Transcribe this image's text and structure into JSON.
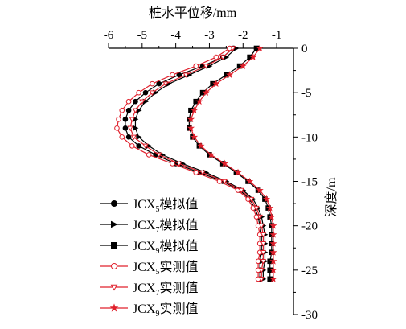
{
  "chart_data": {
    "type": "line",
    "title": "",
    "xlabel": "桩水平位移/mm",
    "ylabel": "深度/m",
    "xlim": [
      -6,
      -0.5
    ],
    "ylim": [
      0,
      -30
    ],
    "x_ticks": [
      -6,
      -5,
      -4,
      -3,
      -2,
      -1
    ],
    "y_ticks": [
      0,
      -5,
      -10,
      -15,
      -20,
      -25,
      -30
    ],
    "x_axis_position": "top",
    "y_axis_position": "right",
    "grid": false,
    "legend_position": "bottom-left",
    "series": [
      {
        "name": "JCX5模拟值",
        "name_base": "JCX",
        "name_sub": "5",
        "name_suffix": "模拟值",
        "color": "#000000",
        "marker": "circle",
        "filled": true,
        "depth": [
          0,
          -1,
          -2,
          -3,
          -4,
          -5,
          -6,
          -7,
          -8,
          -9,
          -10,
          -11,
          -12,
          -13,
          -14,
          -15,
          -16,
          -17,
          -18,
          -19,
          -20,
          -21,
          -22,
          -23,
          -24,
          -25,
          -26
        ],
        "x": [
          -2.3,
          -2.6,
          -3.2,
          -3.9,
          -4.5,
          -4.9,
          -5.2,
          -5.4,
          -5.5,
          -5.5,
          -5.4,
          -5.1,
          -4.6,
          -4.0,
          -3.3,
          -2.6,
          -2.1,
          -1.8,
          -1.65,
          -1.55,
          -1.5,
          -1.45,
          -1.45,
          -1.45,
          -1.5,
          -1.5,
          -1.5
        ]
      },
      {
        "name": "JCX7模拟值",
        "name_base": "JCX",
        "name_sub": "7",
        "name_suffix": "模拟值",
        "color": "#000000",
        "marker": "triangle-right",
        "filled": true,
        "depth": [
          0,
          -1,
          -2,
          -3,
          -4,
          -5,
          -6,
          -7,
          -8,
          -9,
          -10,
          -11,
          -12,
          -13,
          -14,
          -15,
          -16,
          -17,
          -18,
          -19,
          -20,
          -21,
          -22,
          -23,
          -24,
          -25,
          -26
        ],
        "x": [
          -2.2,
          -2.5,
          -3.0,
          -3.6,
          -4.2,
          -4.6,
          -4.9,
          -5.1,
          -5.2,
          -5.2,
          -5.1,
          -4.8,
          -4.4,
          -3.8,
          -3.1,
          -2.5,
          -2.0,
          -1.7,
          -1.55,
          -1.45,
          -1.4,
          -1.35,
          -1.35,
          -1.35,
          -1.35,
          -1.4,
          -1.4
        ]
      },
      {
        "name": "JCX9模拟值",
        "name_base": "JCX",
        "name_sub": "9",
        "name_suffix": "模拟值",
        "color": "#000000",
        "marker": "square",
        "filled": true,
        "depth": [
          0,
          -1,
          -2,
          -3,
          -4,
          -5,
          -6,
          -7,
          -8,
          -9,
          -10,
          -11,
          -12,
          -13,
          -14,
          -15,
          -16,
          -17,
          -18,
          -19,
          -20,
          -21,
          -22,
          -23,
          -24,
          -25,
          -26
        ],
        "x": [
          -1.6,
          -1.8,
          -2.1,
          -2.5,
          -2.9,
          -3.2,
          -3.4,
          -3.55,
          -3.6,
          -3.6,
          -3.5,
          -3.3,
          -3.0,
          -2.6,
          -2.2,
          -1.85,
          -1.55,
          -1.35,
          -1.25,
          -1.2,
          -1.15,
          -1.15,
          -1.15,
          -1.15,
          -1.2,
          -1.2,
          -1.2
        ]
      },
      {
        "name": "JCX5实测值",
        "name_base": "JCX",
        "name_sub": "5",
        "name_suffix": "实测值",
        "color": "#e0202c",
        "marker": "circle",
        "filled": false,
        "depth": [
          0,
          -1,
          -2,
          -3,
          -4,
          -5,
          -6,
          -7,
          -8,
          -9,
          -10,
          -11,
          -12,
          -13,
          -14,
          -15,
          -16,
          -17,
          -18,
          -19,
          -20,
          -21,
          -22,
          -23,
          -24,
          -25,
          -26
        ],
        "x": [
          -2.4,
          -2.8,
          -3.4,
          -4.1,
          -4.7,
          -5.1,
          -5.4,
          -5.6,
          -5.7,
          -5.75,
          -5.6,
          -5.3,
          -4.8,
          -4.1,
          -3.4,
          -2.7,
          -2.15,
          -1.85,
          -1.7,
          -1.6,
          -1.55,
          -1.5,
          -1.5,
          -1.5,
          -1.55,
          -1.55,
          -1.55
        ]
      },
      {
        "name": "JCX7实测值",
        "name_base": "JCX",
        "name_sub": "7",
        "name_suffix": "实测值",
        "color": "#e0202c",
        "marker": "triangle-down",
        "filled": false,
        "depth": [
          0,
          -1,
          -2,
          -3,
          -4,
          -5,
          -6,
          -7,
          -8,
          -9,
          -10,
          -11,
          -12,
          -13,
          -14,
          -15,
          -16,
          -17,
          -18,
          -19,
          -20,
          -21,
          -22,
          -23,
          -24,
          -25,
          -26
        ],
        "x": [
          -2.3,
          -2.6,
          -3.1,
          -3.7,
          -4.3,
          -4.7,
          -5.0,
          -5.2,
          -5.3,
          -5.35,
          -5.25,
          -4.9,
          -4.5,
          -3.9,
          -3.2,
          -2.55,
          -2.05,
          -1.75,
          -1.6,
          -1.5,
          -1.45,
          -1.4,
          -1.4,
          -1.4,
          -1.4,
          -1.45,
          -1.45
        ]
      },
      {
        "name": "JCX9实测值",
        "name_base": "JCX",
        "name_sub": "9",
        "name_suffix": "实测值",
        "color": "#e0202c",
        "marker": "star",
        "filled": true,
        "depth": [
          0,
          -1,
          -2,
          -3,
          -4,
          -5,
          -6,
          -7,
          -8,
          -9,
          -10,
          -11,
          -12,
          -13,
          -14,
          -15,
          -16,
          -17,
          -18,
          -19,
          -20,
          -21,
          -22,
          -23,
          -24,
          -25,
          -26
        ],
        "x": [
          -1.5,
          -1.7,
          -2.0,
          -2.4,
          -2.8,
          -3.1,
          -3.3,
          -3.45,
          -3.55,
          -3.55,
          -3.45,
          -3.25,
          -2.95,
          -2.55,
          -2.15,
          -1.8,
          -1.5,
          -1.3,
          -1.2,
          -1.15,
          -1.1,
          -1.1,
          -1.1,
          -1.1,
          -1.1,
          -1.1,
          -1.1
        ]
      }
    ]
  }
}
